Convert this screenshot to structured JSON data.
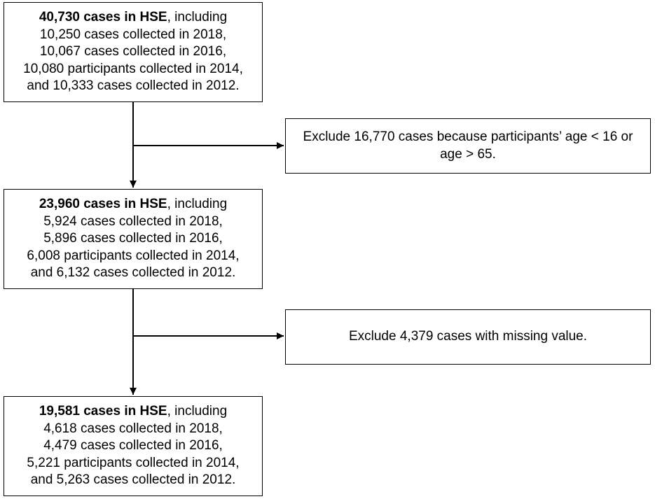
{
  "flowchart": {
    "box1": {
      "count": "40,730 cases in HSE",
      "suffix": ", including",
      "lines": [
        "10,250 cases collected in 2018,",
        "10,067 cases collected in 2016,",
        "10,080 participants collected in 2014,",
        "and 10,333 cases collected in 2012."
      ]
    },
    "exclusion1": {
      "lines": [
        "Exclude 16,770 cases because participants’ age < 16 or",
        "age > 65."
      ]
    },
    "box2": {
      "count": "23,960 cases in HSE",
      "suffix": ", including",
      "lines": [
        "5,924 cases collected in 2018,",
        "5,896 cases collected in 2016,",
        "6,008 participants collected in 2014,",
        "and 6,132 cases collected in 2012."
      ]
    },
    "exclusion2": {
      "lines": [
        "Exclude 4,379 cases with missing value."
      ]
    },
    "box3": {
      "count": "19,581 cases in HSE",
      "suffix": ", including",
      "lines": [
        "4,618 cases collected in 2018,",
        "4,479 cases collected in 2016,",
        "5,221 participants collected in 2014,",
        "and 5,263 cases collected in 2012."
      ]
    }
  },
  "colors": {
    "stroke": "#000000",
    "background": "#ffffff"
  }
}
